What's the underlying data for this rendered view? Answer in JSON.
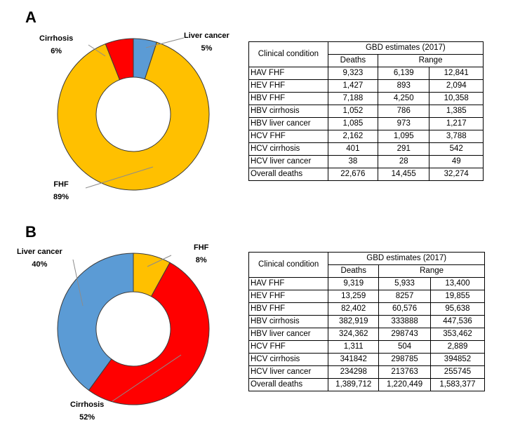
{
  "chart_data": [
    {
      "type": "pie",
      "panel": "A",
      "hole": true,
      "slices": [
        {
          "label": "Liver cancer",
          "pct_label": "5%",
          "value": 5,
          "color": "#5b9bd5"
        },
        {
          "label": "FHF",
          "pct_label": "89%",
          "value": 89,
          "color": "#ffc000"
        },
        {
          "label": "Cirrhosis",
          "pct_label": "6%",
          "value": 6,
          "color": "#ff0000"
        }
      ],
      "table": {
        "header_condition": "Clinical condition",
        "header_group": "GBD estimates (2017)",
        "header_deaths": "Deaths",
        "header_range": "Range",
        "rows": [
          {
            "condition": "HAV FHF",
            "deaths": "9,323",
            "low": "6,139",
            "high": "12,841"
          },
          {
            "condition": "HEV FHF",
            "deaths": "1,427",
            "low": "893",
            "high": "2,094"
          },
          {
            "condition": "HBV FHF",
            "deaths": "7,188",
            "low": "4,250",
            "high": "10,358"
          },
          {
            "condition": "HBV cirrhosis",
            "deaths": "1,052",
            "low": "786",
            "high": "1,385"
          },
          {
            "condition": "HBV liver cancer",
            "deaths": "1,085",
            "low": "973",
            "high": "1,217"
          },
          {
            "condition": "HCV FHF",
            "deaths": "2,162",
            "low": "1,095",
            "high": "3,788"
          },
          {
            "condition": "HCV cirrhosis",
            "deaths": "401",
            "low": "291",
            "high": "542"
          },
          {
            "condition": "HCV liver cancer",
            "deaths": "38",
            "low": "28",
            "high": "49"
          },
          {
            "condition": "Overall deaths",
            "deaths": "22,676",
            "low": "14,455",
            "high": "32,274"
          }
        ]
      }
    },
    {
      "type": "pie",
      "panel": "B",
      "hole": true,
      "slices": [
        {
          "label": "FHF",
          "pct_label": "8%",
          "value": 8,
          "color": "#ffc000"
        },
        {
          "label": "Cirrhosis",
          "pct_label": "52%",
          "value": 52,
          "color": "#ff0000"
        },
        {
          "label": "Liver cancer",
          "pct_label": "40%",
          "value": 40,
          "color": "#5b9bd5"
        }
      ],
      "table": {
        "header_condition": "Clinical condition",
        "header_group": "GBD estimates (2017)",
        "header_deaths": "Deaths",
        "header_range": "Range",
        "rows": [
          {
            "condition": "HAV FHF",
            "deaths": "9,319",
            "low": "5,933",
            "high": "13,400"
          },
          {
            "condition": "HEV FHF",
            "deaths": "13,259",
            "low": "8257",
            "high": "19,855"
          },
          {
            "condition": "HBV FHF",
            "deaths": "82,402",
            "low": "60,576",
            "high": "95,638"
          },
          {
            "condition": "HBV cirrhosis",
            "deaths": "382,919",
            "low": "333888",
            "high": "447,536"
          },
          {
            "condition": "HBV liver cancer",
            "deaths": "324,362",
            "low": "298743",
            "high": "353,462"
          },
          {
            "condition": "HCV FHF",
            "deaths": "1,311",
            "low": "504",
            "high": "2,889"
          },
          {
            "condition": "HCV cirrhosis",
            "deaths": "341842",
            "low": "298785",
            "high": "394852"
          },
          {
            "condition": "HCV liver cancer",
            "deaths": "234298",
            "low": "213763",
            "high": "255745"
          },
          {
            "condition": "Overall deaths",
            "deaths": "1,389,712",
            "low": "1,220,449",
            "high": "1,583,377"
          }
        ]
      }
    }
  ]
}
